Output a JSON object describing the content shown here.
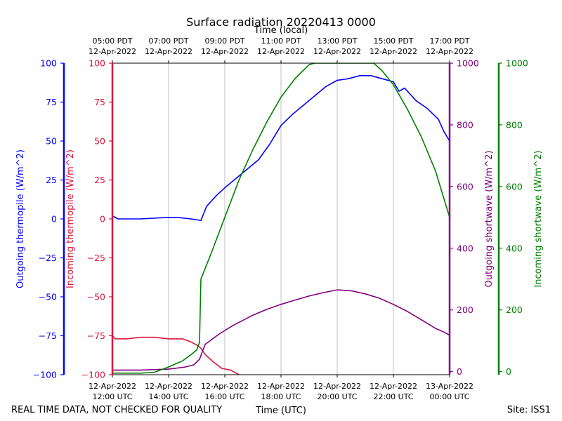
{
  "chart_data": {
    "type": "line",
    "title": "Surface radiation 20220413 0000",
    "top_axis_label": "Time (local)",
    "xlabel": "Time (UTC)",
    "footer_left": "REAL TIME DATA, NOT CHECKED FOR QUALITY",
    "footer_right": "Site: ISS1",
    "x_range_hours_utc": [
      12,
      24
    ],
    "grid": "vertical at major ticks",
    "x_ticks_utc": [
      {
        "hour": 12,
        "line1": "12-Apr-2022",
        "line2": "12:00 UTC"
      },
      {
        "hour": 14,
        "line1": "12-Apr-2022",
        "line2": "14:00 UTC"
      },
      {
        "hour": 16,
        "line1": "12-Apr-2022",
        "line2": "16:00 UTC"
      },
      {
        "hour": 18,
        "line1": "12-Apr-2022",
        "line2": "18:00 UTC"
      },
      {
        "hour": 20,
        "line1": "12-Apr-2022",
        "line2": "20:00 UTC"
      },
      {
        "hour": 22,
        "line1": "12-Apr-2022",
        "line2": "22:00 UTC"
      },
      {
        "hour": 24,
        "line1": "13-Apr-2022",
        "line2": "00:00 UTC"
      }
    ],
    "x_ticks_local": [
      {
        "hour": 12,
        "line1": "05:00 PDT",
        "line2": "12-Apr-2022"
      },
      {
        "hour": 14,
        "line1": "07:00 PDT",
        "line2": "12-Apr-2022"
      },
      {
        "hour": 16,
        "line1": "09:00 PDT",
        "line2": "12-Apr-2022"
      },
      {
        "hour": 18,
        "line1": "11:00 PDT",
        "line2": "12-Apr-2022"
      },
      {
        "hour": 20,
        "line1": "13:00 PDT",
        "line2": "12-Apr-2022"
      },
      {
        "hour": 22,
        "line1": "15:00 PDT",
        "line2": "12-Apr-2022"
      },
      {
        "hour": 24,
        "line1": "17:00 PDT",
        "line2": "12-Apr-2022"
      }
    ],
    "axes": [
      {
        "id": "out_thermo",
        "label": "Outgoing thermopile (W/m^2)",
        "color": "#0000ff",
        "range": [
          -100,
          100
        ],
        "ticks": [
          -100,
          -75,
          -50,
          -25,
          0,
          25,
          50,
          75,
          100
        ],
        "tick_labels": [
          "−100",
          "−75",
          "−50",
          "−25",
          "0",
          "25",
          "50",
          "75",
          "100"
        ]
      },
      {
        "id": "in_thermo",
        "label": "Incoming thermopile (W/m^2)",
        "color": "#dc143c",
        "range": [
          -100,
          100
        ],
        "ticks": [
          -100,
          -75,
          -50,
          -25,
          0,
          25,
          50,
          75,
          100
        ],
        "tick_labels": [
          "−100",
          "−75",
          "−50",
          "−25",
          "0",
          "25",
          "50",
          "75",
          "100"
        ]
      },
      {
        "id": "out_sw",
        "label": "Outgoing shortwave (W/m^2)",
        "color": "#800080",
        "range": [
          -10,
          1000
        ],
        "ticks": [
          0,
          200,
          400,
          600,
          800,
          1000
        ],
        "tick_labels": [
          "0",
          "200",
          "400",
          "600",
          "800",
          "1000"
        ]
      },
      {
        "id": "in_sw",
        "label": "Incoming shortwave (W/m^2)",
        "color": "#008000",
        "range": [
          -10,
          1000
        ],
        "ticks": [
          0,
          200,
          400,
          600,
          800,
          1000
        ],
        "tick_labels": [
          "0",
          "200",
          "400",
          "600",
          "800",
          "1000"
        ]
      }
    ],
    "series": [
      {
        "name": "Outgoing thermopile",
        "axis": "out_thermo",
        "color": "#0000ff",
        "x": [
          12.0,
          12.2,
          13.0,
          14.0,
          14.3,
          14.8,
          15.15,
          15.35,
          15.7,
          16.0,
          16.4,
          16.8,
          17.2,
          17.6,
          18.0,
          18.4,
          18.8,
          19.2,
          19.6,
          20.0,
          20.4,
          20.8,
          21.2,
          21.6,
          22.0,
          22.2,
          22.4,
          22.8,
          23.2,
          23.6,
          23.8,
          24.0
        ],
        "y": [
          2,
          0,
          0,
          1,
          1,
          0,
          -1,
          8,
          15,
          20,
          26,
          32,
          38,
          48,
          60,
          67,
          73,
          79,
          85,
          89,
          90,
          92,
          92,
          90,
          88,
          82,
          84,
          76,
          71,
          64,
          56,
          50
        ]
      },
      {
        "name": "Incoming thermopile",
        "axis": "in_thermo",
        "color": "#dc143c",
        "x": [
          12.0,
          12.1,
          12.5,
          13.0,
          13.5,
          14.0,
          14.5,
          14.8,
          15.0,
          15.15,
          15.3,
          15.6,
          15.9,
          16.2,
          16.5
        ],
        "y": [
          -75,
          -77,
          -77,
          -76,
          -76,
          -77,
          -77,
          -79,
          -81,
          -83,
          -87,
          -92,
          -96,
          -97,
          -100
        ]
      },
      {
        "name": "Outgoing shortwave",
        "axis": "out_sw",
        "color": "#800080",
        "x": [
          12.0,
          13.0,
          14.0,
          14.6,
          14.9,
          15.1,
          15.3,
          15.8,
          16.3,
          17.0,
          17.5,
          18.0,
          18.5,
          19.0,
          19.5,
          20.0,
          20.5,
          21.0,
          21.5,
          22.0,
          22.5,
          23.0,
          23.5,
          23.8,
          24.0
        ],
        "y": [
          5,
          5,
          8,
          15,
          22,
          40,
          88,
          122,
          150,
          183,
          202,
          218,
          232,
          245,
          256,
          265,
          262,
          252,
          238,
          218,
          195,
          168,
          140,
          128,
          118
        ]
      },
      {
        "name": "Incoming shortwave",
        "axis": "in_sw",
        "color": "#008000",
        "x": [
          12.0,
          13.0,
          13.5,
          14.0,
          14.5,
          14.8,
          15.0,
          15.1,
          15.15,
          15.5,
          16.0,
          16.5,
          17.0,
          17.5,
          18.0,
          18.5,
          19.0,
          19.2,
          19.5,
          20.0,
          20.5,
          21.0,
          21.3,
          21.6,
          22.0,
          22.5,
          23.0,
          23.5,
          23.8,
          24.0
        ],
        "y": [
          -5,
          -5,
          -2,
          15,
          35,
          55,
          70,
          95,
          300,
          380,
          500,
          620,
          720,
          810,
          890,
          950,
          995,
          1000,
          1000,
          1000,
          1000,
          1000,
          1000,
          975,
          930,
          850,
          760,
          650,
          560,
          500
        ]
      }
    ]
  }
}
